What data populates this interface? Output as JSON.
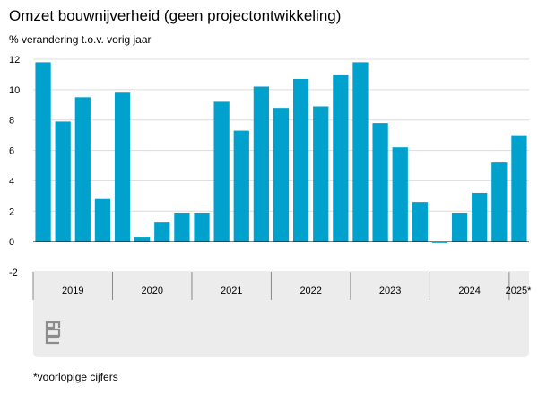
{
  "title": "Omzet bouwnijverheid (geen projectontwikkeling)",
  "subtitle": "% verandering t.o.v. vorig jaar",
  "footnote": "*voorlopige cijfers",
  "colors": {
    "bar": "#00a1cd",
    "grid": "#dcdcdc",
    "axis": "#000000",
    "panel": "#ececec",
    "logo": "#8c8c8c"
  },
  "logo_icon": "cbs-logo-icon",
  "chart_data": {
    "type": "bar",
    "title": "",
    "xlabel": "",
    "ylabel": "% verandering t.o.v. vorig jaar",
    "ylim": [
      -2,
      12
    ],
    "yticks": [
      -2,
      0,
      2,
      4,
      6,
      8,
      10,
      12
    ],
    "grid": true,
    "years": [
      {
        "label": "2019",
        "quarters": 4
      },
      {
        "label": "2020",
        "quarters": 4
      },
      {
        "label": "2021",
        "quarters": 4
      },
      {
        "label": "2022",
        "quarters": 4
      },
      {
        "label": "2023",
        "quarters": 4
      },
      {
        "label": "2024",
        "quarters": 4
      },
      {
        "label": "2025*",
        "quarters": 1
      }
    ],
    "values": [
      11.8,
      7.9,
      9.5,
      2.8,
      9.8,
      0.3,
      1.3,
      1.9,
      1.9,
      9.2,
      7.3,
      10.2,
      8.8,
      10.7,
      8.9,
      11.0,
      11.8,
      7.8,
      6.2,
      2.6,
      -0.1,
      1.9,
      3.2,
      5.2,
      7.0
    ]
  }
}
